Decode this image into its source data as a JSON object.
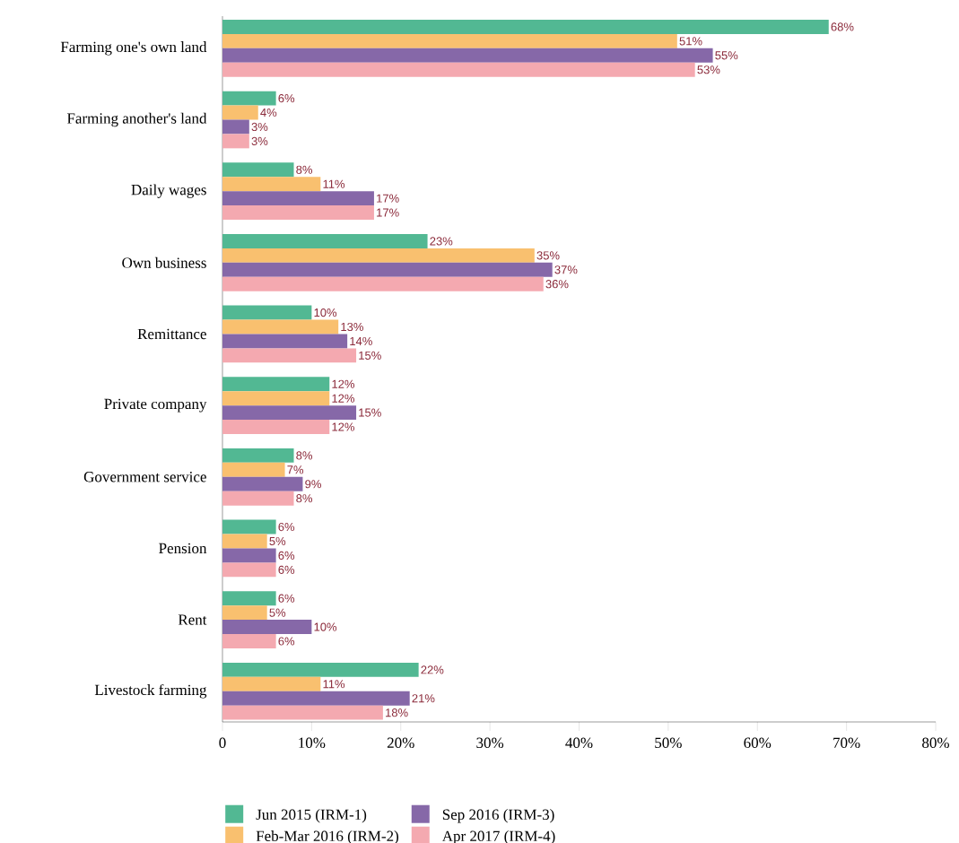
{
  "chart_data": {
    "type": "bar",
    "orientation": "horizontal",
    "categories": [
      "Farming one's own land",
      "Farming another's land",
      "Daily wages",
      "Own business",
      "Remittance",
      "Private company",
      "Government service",
      "Pension",
      "Rent",
      "Livestock farming"
    ],
    "series": [
      {
        "name": "Jun 2015 (IRM-1)",
        "color": "#52b893",
        "values": [
          68,
          6,
          8,
          23,
          10,
          12,
          8,
          6,
          6,
          22
        ],
        "value_labels": [
          "68%",
          "6%",
          "8%",
          "23%",
          "10%",
          "12%",
          "8%",
          "6%",
          "6%",
          "22%"
        ]
      },
      {
        "name": "Feb-Mar 2016 (IRM-2)",
        "color": "#f9c06f",
        "values": [
          51,
          4,
          11,
          35,
          13,
          12,
          7,
          5,
          5,
          11
        ],
        "value_labels": [
          "51%",
          "4%",
          "11%",
          "35%",
          "13%",
          "12%",
          "7%",
          "5%",
          "5%",
          "11%"
        ]
      },
      {
        "name": "Sep 2016 (IRM-3)",
        "color": "#8668a8",
        "values": [
          55,
          3,
          17,
          37,
          14,
          15,
          9,
          6,
          10,
          21
        ],
        "value_labels": [
          "55%",
          "3%",
          "17%",
          "37%",
          "14%",
          "15%",
          "9%",
          "6%",
          "10%",
          "21%"
        ]
      },
      {
        "name": "Apr 2017 (IRM-4)",
        "color": "#f4a9b0",
        "values": [
          53,
          3,
          17,
          36,
          15,
          12,
          8,
          6,
          6,
          18
        ],
        "value_labels": [
          "53%",
          "3%",
          "17%",
          "36%",
          "15%",
          "12%",
          "8%",
          "6%",
          "6%",
          "18%"
        ]
      }
    ],
    "xlim": [
      0,
      80
    ],
    "xticks": [
      0,
      {
        "value": 10,
        "label": "10%"
      },
      {
        "value": 20,
        "label": "20%"
      },
      {
        "value": 30,
        "label": "30%"
      },
      {
        "value": 40,
        "label": "40%"
      },
      {
        "value": 50,
        "label": "50%"
      },
      {
        "value": 60,
        "label": "60%"
      },
      {
        "value": 70,
        "label": "70%"
      },
      {
        "value": 80,
        "label": "80%"
      }
    ],
    "legend": "bottom"
  }
}
